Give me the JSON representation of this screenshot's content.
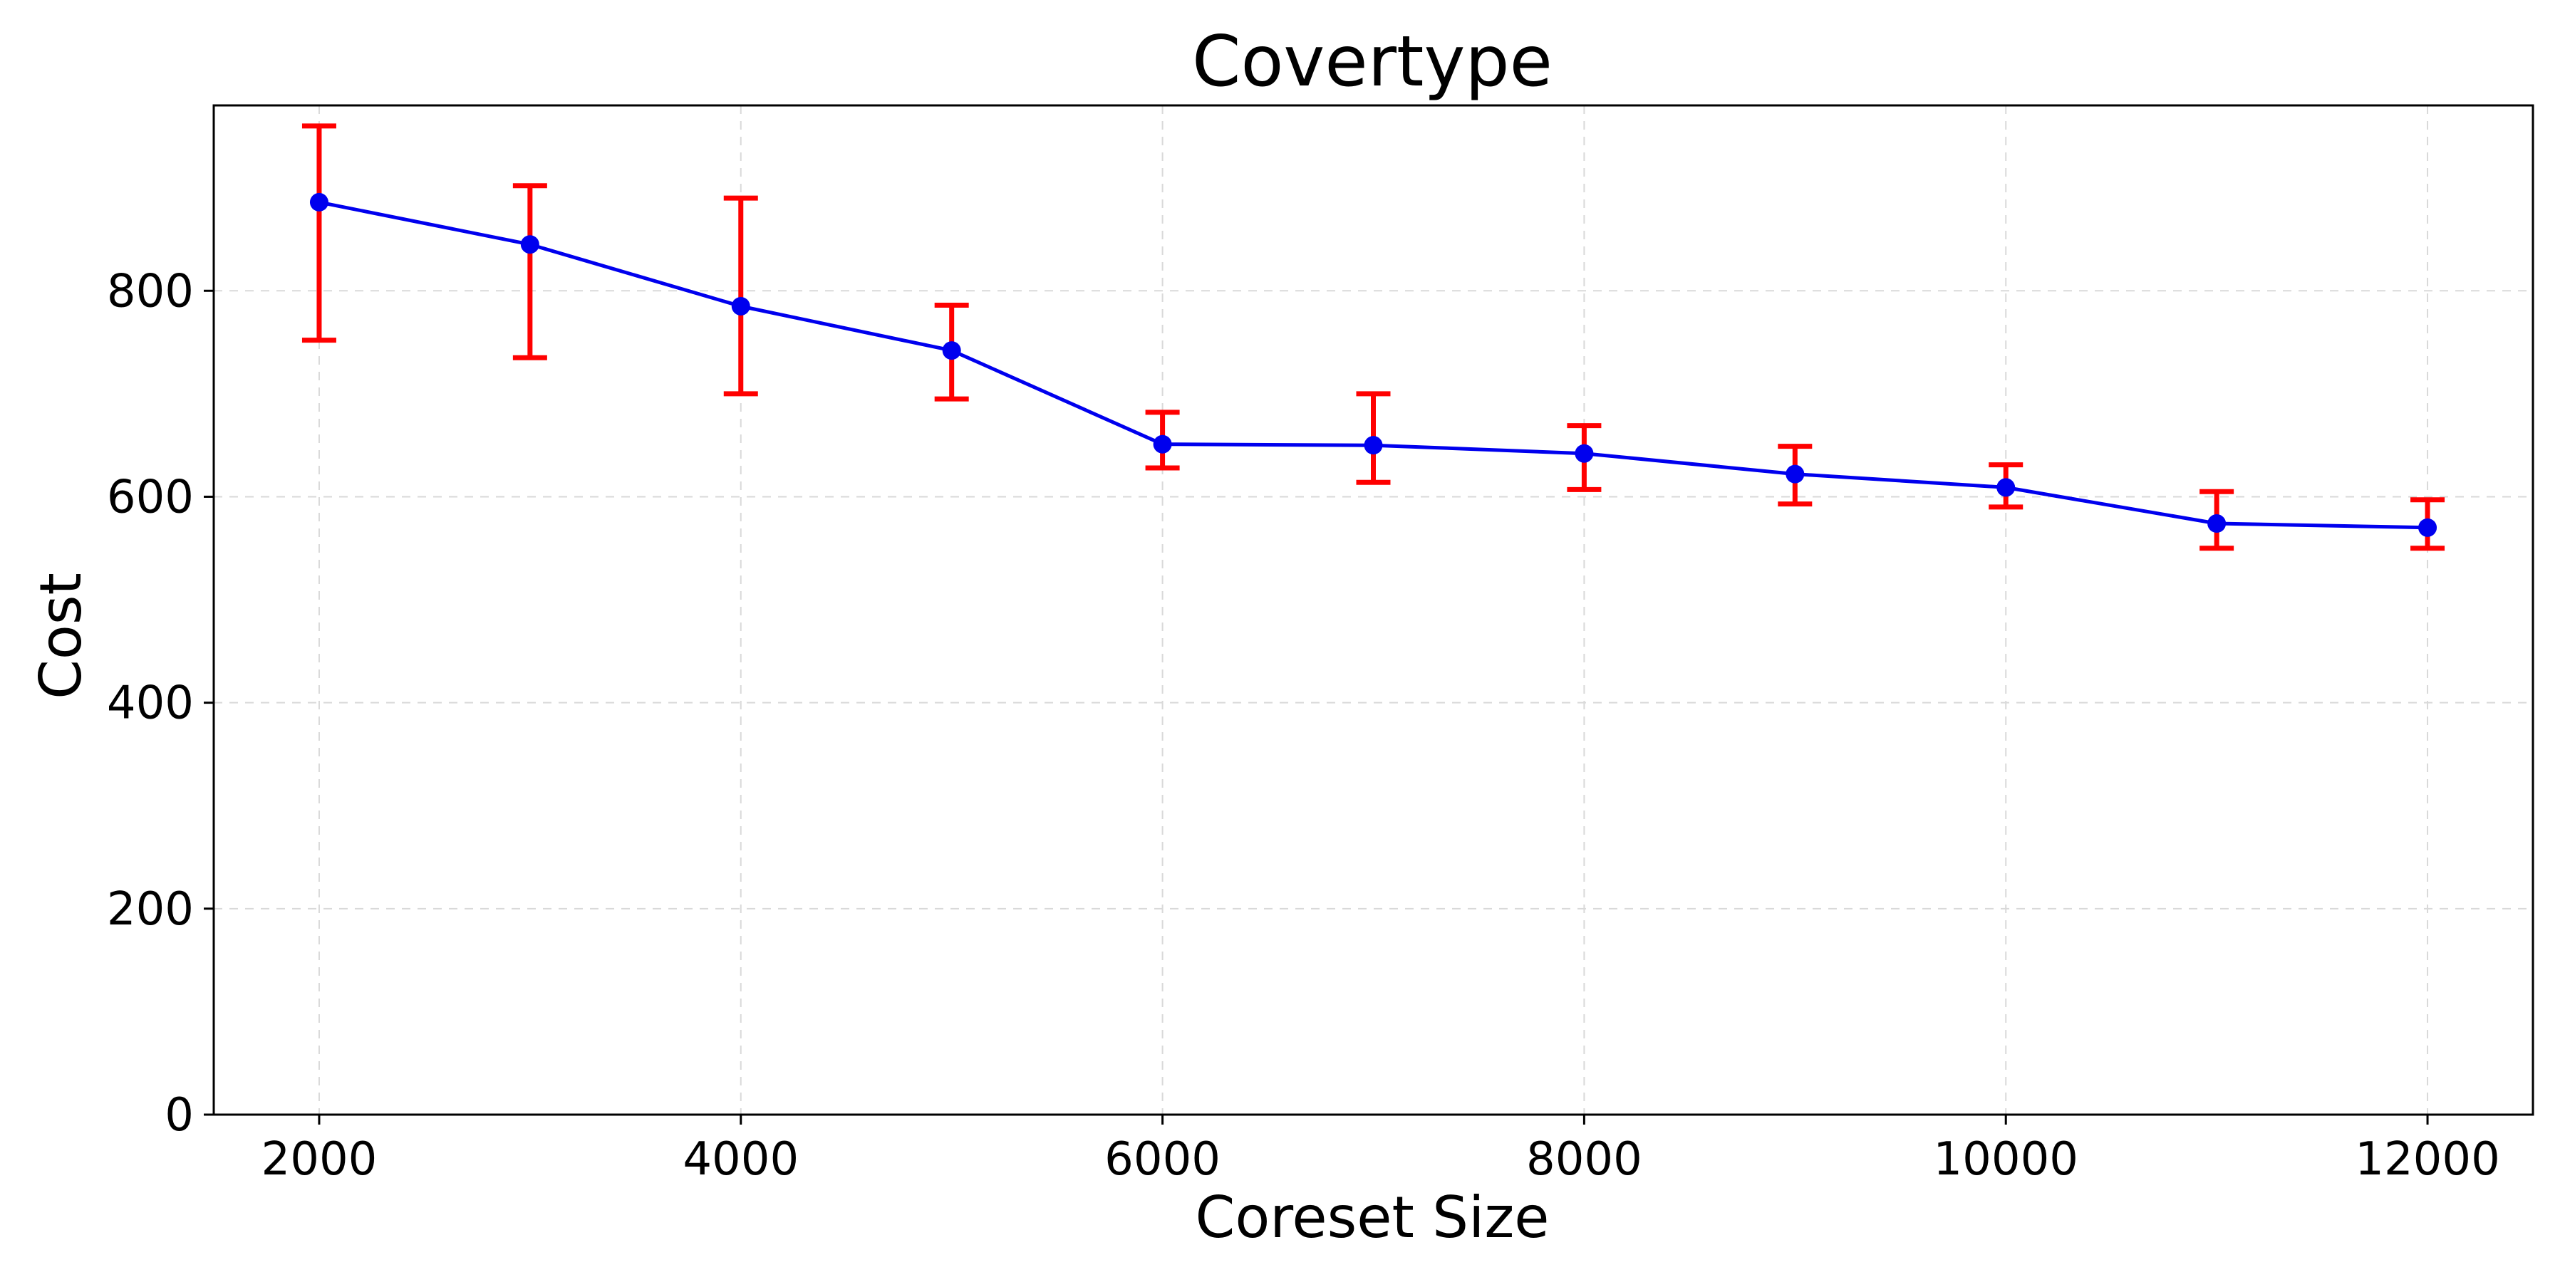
{
  "chart_data": {
    "type": "line",
    "title": "Covertype",
    "xlabel": "Coreset Size",
    "ylabel": "Cost",
    "xlim": [
      1500,
      12500
    ],
    "ylim": [
      0,
      980
    ],
    "x_ticks": [
      2000,
      4000,
      6000,
      8000,
      10000,
      12000
    ],
    "y_ticks": [
      0,
      200,
      400,
      600,
      800
    ],
    "grid": true,
    "legend": "none",
    "series": [
      {
        "x": [
          2000,
          3000,
          4000,
          5000,
          6000,
          7000,
          8000,
          9000,
          10000,
          11000,
          12000
        ],
        "y": [
          886,
          845,
          785,
          742,
          651,
          650,
          642,
          622,
          609,
          574,
          570
        ],
        "error_lower": [
          752,
          735,
          700,
          695,
          628,
          614,
          607,
          593,
          590,
          550,
          550
        ],
        "error_upper": [
          960,
          902,
          890,
          786,
          682,
          700,
          669,
          649,
          631,
          605,
          597
        ],
        "line_color": "#0000ee",
        "marker_color": "#0000ee",
        "error_color": "#ff0000"
      }
    ]
  }
}
